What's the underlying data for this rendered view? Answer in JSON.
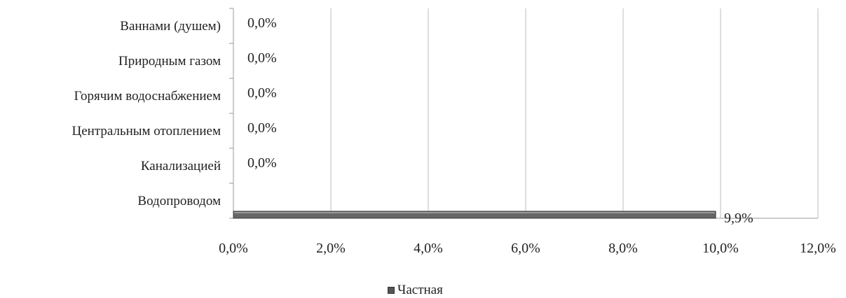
{
  "chart_data": {
    "type": "bar",
    "orientation": "horizontal",
    "categories": [
      "Водопроводом",
      "Канализацией",
      "Центральным отоплением",
      "Горячим водоснабжением",
      "Природным газом",
      "Ваннами (душем)"
    ],
    "series": [
      {
        "name": "Частная",
        "values": [
          9.9,
          0.0,
          0.0,
          0.0,
          0.0,
          0.0
        ],
        "color": "#666666"
      }
    ],
    "value_labels": [
      "9,9%",
      "0,0%",
      "0,0%",
      "0,0%",
      "0,0%",
      "0,0%"
    ],
    "x_ticks": [
      "0,0%",
      "2,0%",
      "4,0%",
      "6,0%",
      "8,0%",
      "10,0%",
      "12,0%"
    ],
    "xlim": [
      0,
      12
    ],
    "grid": true,
    "legend_position": "bottom"
  }
}
